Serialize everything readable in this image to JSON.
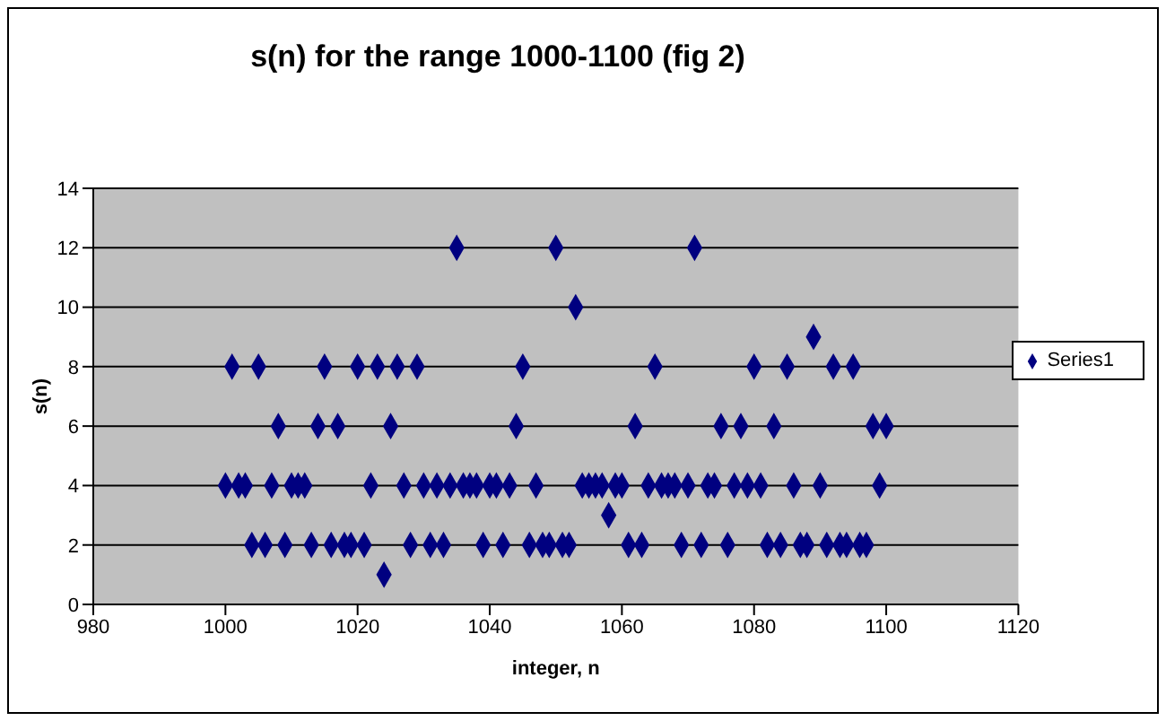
{
  "chart_data": {
    "type": "scatter",
    "title": "s(n) for the range 1000-1100  (fig 2)",
    "xlabel": "integer, n",
    "ylabel": "s(n)",
    "x": [
      1000,
      1001,
      1002,
      1003,
      1004,
      1005,
      1006,
      1007,
      1008,
      1009,
      1010,
      1011,
      1012,
      1013,
      1014,
      1015,
      1016,
      1017,
      1018,
      1019,
      1020,
      1021,
      1022,
      1023,
      1024,
      1025,
      1026,
      1027,
      1028,
      1029,
      1030,
      1031,
      1032,
      1033,
      1034,
      1035,
      1036,
      1037,
      1038,
      1039,
      1040,
      1041,
      1042,
      1043,
      1044,
      1045,
      1046,
      1047,
      1048,
      1049,
      1050,
      1051,
      1052,
      1053,
      1054,
      1055,
      1056,
      1057,
      1058,
      1059,
      1060,
      1061,
      1062,
      1063,
      1064,
      1065,
      1066,
      1067,
      1068,
      1069,
      1070,
      1071,
      1072,
      1073,
      1074,
      1075,
      1076,
      1077,
      1078,
      1079,
      1080,
      1081,
      1082,
      1083,
      1084,
      1085,
      1086,
      1087,
      1088,
      1089,
      1090,
      1091,
      1092,
      1093,
      1094,
      1095,
      1096,
      1097,
      1098,
      1099,
      1100
    ],
    "series": [
      {
        "name": "Series1",
        "color": "#000080",
        "values": [
          4,
          8,
          4,
          4,
          2,
          8,
          2,
          4,
          6,
          2,
          4,
          4,
          4,
          2,
          6,
          8,
          2,
          6,
          2,
          2,
          8,
          2,
          4,
          8,
          1,
          6,
          8,
          4,
          2,
          8,
          4,
          2,
          4,
          2,
          4,
          12,
          4,
          4,
          4,
          2,
          4,
          4,
          2,
          4,
          6,
          8,
          2,
          4,
          2,
          2,
          12,
          2,
          2,
          10,
          4,
          4,
          4,
          4,
          3,
          4,
          4,
          2,
          6,
          2,
          4,
          8,
          4,
          4,
          4,
          2,
          4,
          12,
          2,
          4,
          4,
          6,
          2,
          4,
          6,
          4,
          8,
          4,
          2,
          6,
          2,
          8,
          4,
          2,
          2,
          9,
          4,
          2,
          8,
          2,
          2,
          8,
          2,
          2,
          6,
          4,
          6
        ]
      }
    ],
    "xlim": [
      980,
      1120
    ],
    "xticks": [
      980,
      1000,
      1020,
      1040,
      1060,
      1080,
      1100,
      1120
    ],
    "ylim": [
      0,
      14
    ],
    "yticks": [
      0,
      2,
      4,
      6,
      8,
      10,
      12,
      14
    ],
    "grid": "y",
    "legend": "right",
    "marker": "diamond"
  }
}
